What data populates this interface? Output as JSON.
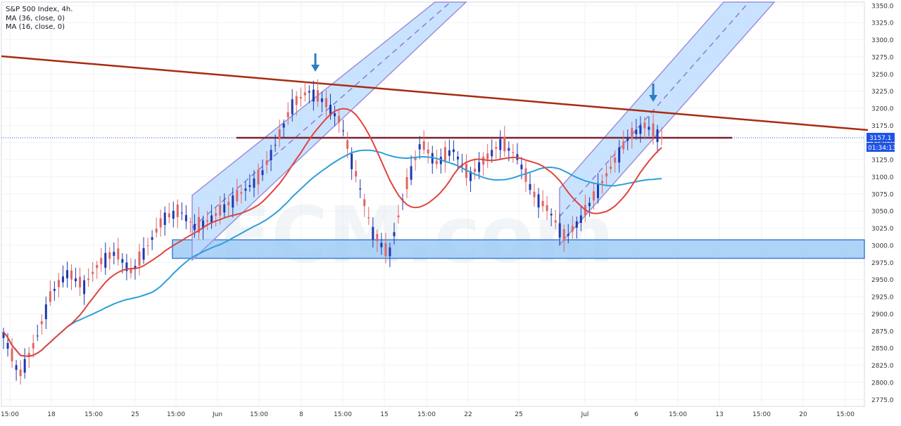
{
  "chart_data": {
    "type": "candlestick",
    "title": "S&P 500 Index, 4h.",
    "legend": [
      "MA (36, close, 0)",
      "MA (16, close, 0)"
    ],
    "watermark": "FCM.com",
    "ylim": [
      2765,
      3355
    ],
    "y_ticks": [
      "3350.0",
      "3325.0",
      "3300.0",
      "3275.0",
      "3250.0",
      "3225.0",
      "3200.0",
      "3175.0",
      "3150.0",
      "3125.0",
      "3100.0",
      "3075.0",
      "3050.0",
      "3025.0",
      "3000.0",
      "2975.0",
      "2950.0",
      "2925.0",
      "2900.0",
      "2875.0",
      "2850.0",
      "2825.0",
      "2800.0",
      "2775.0"
    ],
    "x_ticks": [
      "15:00",
      "18",
      "15:00",
      "25",
      "15:00",
      "Jun",
      "15:00",
      "8",
      "15:00",
      "15",
      "15:00",
      "22",
      "25",
      "Jul",
      "6",
      "15:00",
      "13",
      "15:00",
      "20",
      "15:00"
    ],
    "last_price": {
      "value": "3157.1",
      "countdown": "01:34:13",
      "color": "#1e53e5"
    },
    "colors": {
      "up": "#1e3ab0",
      "down": "#e06666",
      "ma16": "#e0443c",
      "ma36": "#2f9fd8",
      "zone_fill": "#9fcbf6",
      "zone_stroke": "#3b7fd4",
      "channel_border": "#9d8fd8",
      "resistance": "#a82b12",
      "arrow": "#2d7fc1"
    },
    "horizontal_support_zone": [
      2981,
      3008
    ],
    "horizontal_resistance": 3157,
    "annotations": [
      "down-arrow near 3255 (Jun 8)",
      "down-arrow near 3240 (Jul 6)"
    ],
    "candles_close_sample": [
      2870,
      2810,
      2860,
      2930,
      2960,
      2940,
      2975,
      2990,
      2960,
      3000,
      3040,
      3050,
      3025,
      3040,
      3060,
      3080,
      3100,
      3150,
      3205,
      3225,
      3210,
      3180,
      3100,
      3020,
      2985,
      3080,
      3150,
      3120,
      3140,
      3100,
      3125,
      3150,
      3130,
      3075,
      3050,
      3010,
      3040,
      3080,
      3120,
      3160,
      3175,
      3157.1
    ],
    "series": [
      {
        "name": "MA (36, close, 0)"
      },
      {
        "name": "MA (16, close, 0)"
      }
    ]
  }
}
